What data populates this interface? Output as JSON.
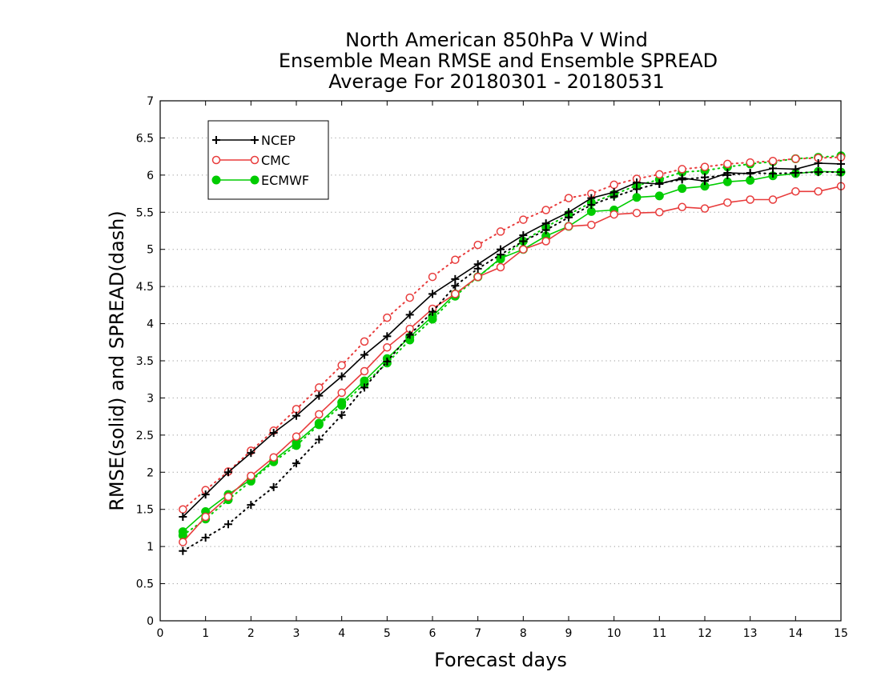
{
  "chart_data": {
    "type": "line",
    "title": [
      "North American 850hPa V Wind",
      "Ensemble Mean RMSE and Ensemble SPREAD",
      "Average For 20180301 - 20180531"
    ],
    "xlabel": "Forecast days",
    "ylabel": "RMSE(solid) and SPREAD(dash)",
    "xlim": [
      0,
      15
    ],
    "ylim": [
      0,
      7
    ],
    "xticks": [
      "0",
      "1",
      "2",
      "3",
      "4",
      "5",
      "6",
      "7",
      "8",
      "9",
      "10",
      "11",
      "12",
      "13",
      "14",
      "15"
    ],
    "yticks": [
      "0",
      "0.5",
      "1",
      "1.5",
      "2",
      "2.5",
      "3",
      "3.5",
      "4",
      "4.5",
      "5",
      "5.5",
      "6",
      "6.5",
      "7"
    ],
    "grid": "horizontal dotted",
    "legend_position": "top-left",
    "x": [
      0.5,
      1,
      1.5,
      2,
      2.5,
      3,
      3.5,
      4,
      4.5,
      5,
      5.5,
      6,
      6.5,
      7,
      7.5,
      8,
      8.5,
      9,
      9.5,
      10,
      10.5,
      11,
      11.5,
      12,
      12.5,
      13,
      13.5,
      14,
      14.5,
      15
    ],
    "series": [
      {
        "name": "NCEP",
        "color": "#000000",
        "marker": "plus",
        "rmse": [
          1.4,
          1.7,
          2.0,
          2.26,
          2.53,
          2.76,
          3.03,
          3.29,
          3.58,
          3.83,
          4.12,
          4.4,
          4.6,
          4.8,
          5.0,
          5.19,
          5.35,
          5.5,
          5.69,
          5.77,
          5.9,
          5.88,
          5.96,
          5.92,
          6.03,
          6.02,
          6.09,
          6.08,
          6.16,
          6.15
        ],
        "spread": [
          0.94,
          1.12,
          1.3,
          1.56,
          1.8,
          2.12,
          2.44,
          2.77,
          3.14,
          3.49,
          3.85,
          4.16,
          4.51,
          4.74,
          4.93,
          5.11,
          5.26,
          5.43,
          5.6,
          5.71,
          5.81,
          5.89,
          5.94,
          5.97,
          6.0,
          6.03,
          6.02,
          6.03,
          6.04,
          6.04
        ]
      },
      {
        "name": "CMC",
        "color": "#e83c3c",
        "marker": "open-circle",
        "rmse": [
          1.06,
          1.4,
          1.67,
          1.95,
          2.2,
          2.48,
          2.78,
          3.07,
          3.36,
          3.68,
          3.93,
          4.2,
          4.4,
          4.63,
          4.76,
          5.0,
          5.11,
          5.31,
          5.33,
          5.47,
          5.49,
          5.5,
          5.57,
          5.55,
          5.63,
          5.67,
          5.67,
          5.78,
          5.78,
          5.85
        ],
        "spread": [
          1.5,
          1.76,
          2.01,
          2.29,
          2.56,
          2.85,
          3.14,
          3.44,
          3.76,
          4.08,
          4.35,
          4.63,
          4.86,
          5.06,
          5.24,
          5.4,
          5.53,
          5.69,
          5.75,
          5.87,
          5.95,
          6.01,
          6.08,
          6.11,
          6.15,
          6.17,
          6.19,
          6.22,
          6.23,
          6.24
        ]
      },
      {
        "name": "ECMWF",
        "color": "#00cc00",
        "marker": "filled-circle",
        "rmse": [
          1.2,
          1.47,
          1.7,
          1.9,
          2.16,
          2.4,
          2.66,
          2.94,
          3.23,
          3.53,
          3.82,
          4.1,
          4.4,
          4.63,
          4.88,
          5.0,
          5.18,
          5.31,
          5.51,
          5.53,
          5.7,
          5.72,
          5.82,
          5.85,
          5.91,
          5.93,
          5.99,
          6.02,
          6.05,
          6.04
        ],
        "spread": [
          1.15,
          1.37,
          1.63,
          1.88,
          2.14,
          2.36,
          2.64,
          2.9,
          3.19,
          3.47,
          3.78,
          4.06,
          4.37,
          4.63,
          4.87,
          5.11,
          5.3,
          5.47,
          5.63,
          5.74,
          5.86,
          5.94,
          6.04,
          6.06,
          6.11,
          6.15,
          6.18,
          6.22,
          6.24,
          6.26
        ]
      }
    ]
  }
}
